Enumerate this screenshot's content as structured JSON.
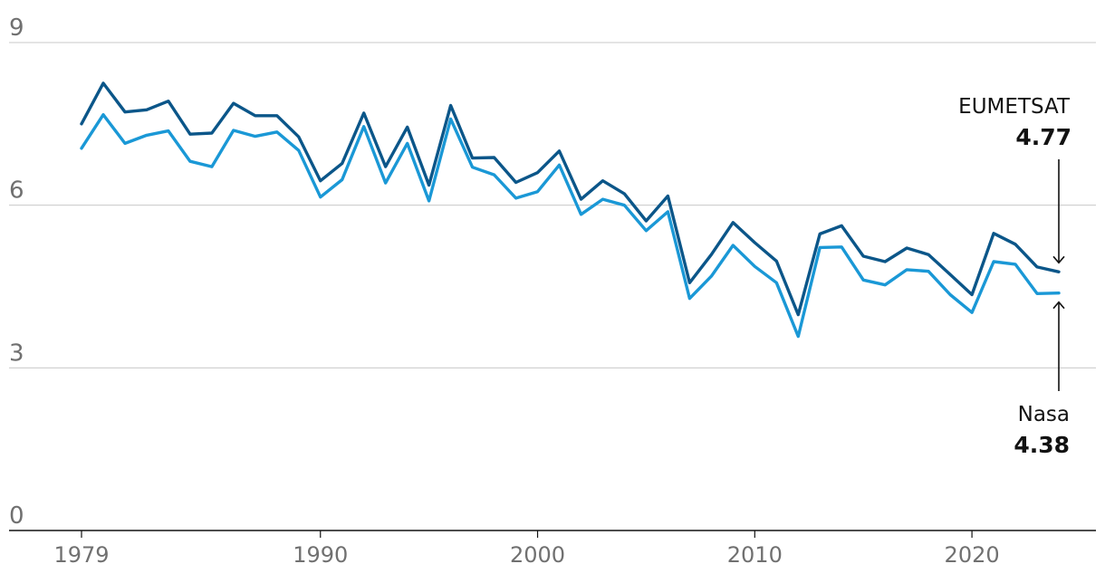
{
  "chart_data": {
    "type": "line",
    "x": [
      1979,
      1980,
      1981,
      1982,
      1983,
      1984,
      1985,
      1986,
      1987,
      1988,
      1989,
      1990,
      1991,
      1992,
      1993,
      1994,
      1995,
      1996,
      1997,
      1998,
      1999,
      2000,
      2001,
      2002,
      2003,
      2004,
      2005,
      2006,
      2007,
      2008,
      2009,
      2010,
      2011,
      2012,
      2013,
      2014,
      2015,
      2016,
      2017,
      2018,
      2019,
      2020,
      2021,
      2022,
      2023,
      2024
    ],
    "series": [
      {
        "name": "EUMETSAT",
        "color": "#0b5689",
        "values": [
          7.5,
          8.25,
          7.72,
          7.76,
          7.92,
          7.31,
          7.33,
          7.88,
          7.65,
          7.65,
          7.26,
          6.45,
          6.77,
          7.7,
          6.71,
          7.44,
          6.37,
          7.84,
          6.87,
          6.88,
          6.42,
          6.6,
          7.0,
          6.11,
          6.45,
          6.21,
          5.71,
          6.17,
          4.57,
          5.09,
          5.68,
          5.31,
          4.97,
          3.98,
          5.47,
          5.62,
          5.06,
          4.96,
          5.21,
          5.09,
          4.72,
          4.35,
          5.48,
          5.28,
          4.86,
          4.77
        ]
      },
      {
        "name": "Nasa",
        "color": "#1a98d6",
        "values": [
          7.05,
          7.67,
          7.14,
          7.29,
          7.37,
          6.81,
          6.71,
          7.38,
          7.27,
          7.35,
          7.01,
          6.15,
          6.47,
          7.45,
          6.41,
          7.14,
          6.08,
          7.59,
          6.7,
          6.56,
          6.13,
          6.25,
          6.74,
          5.83,
          6.11,
          6.0,
          5.53,
          5.88,
          4.28,
          4.69,
          5.26,
          4.87,
          4.57,
          3.58,
          5.22,
          5.23,
          4.62,
          4.53,
          4.81,
          4.78,
          4.35,
          4.02,
          4.96,
          4.91,
          4.37,
          4.38
        ]
      }
    ],
    "yticks": [
      "9",
      "6",
      "3",
      "0"
    ],
    "ytick_values": [
      9,
      6,
      3,
      0
    ],
    "xticks": [
      "1979",
      "1990",
      "2000",
      "2010",
      "2020"
    ],
    "xtick_values": [
      1979,
      1990,
      2000,
      2010,
      2020
    ],
    "ylim": [
      0,
      9
    ],
    "xlim": [
      1979,
      2024
    ],
    "grid": true,
    "labels": [
      {
        "series": "EUMETSAT",
        "name": "EUMETSAT",
        "value": "4.77"
      },
      {
        "series": "Nasa",
        "name": "Nasa",
        "value": "4.38"
      }
    ]
  },
  "colors": {
    "grid": "#c8c8c8",
    "axis": "#121212",
    "tick_text": "#707070",
    "label_text": "#121212"
  }
}
